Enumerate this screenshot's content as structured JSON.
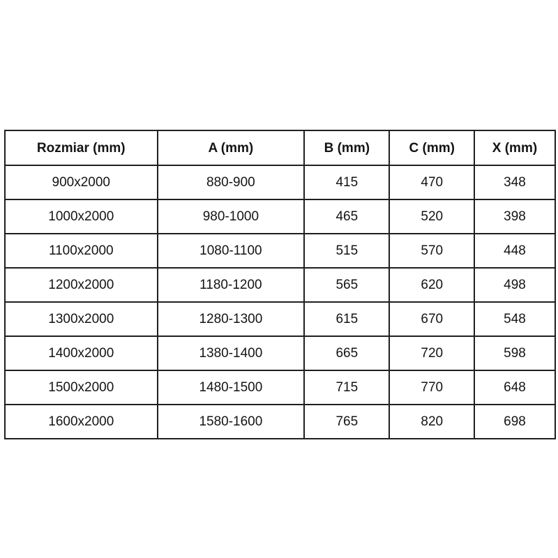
{
  "chart_data": {
    "type": "table",
    "title": "",
    "columns": [
      "Rozmiar (mm)",
      "A (mm)",
      "B (mm)",
      "C (mm)",
      "X (mm)"
    ],
    "rows": [
      [
        "900x2000",
        "880-900",
        "415",
        "470",
        "348"
      ],
      [
        "1000x2000",
        "980-1000",
        "465",
        "520",
        "398"
      ],
      [
        "1100x2000",
        "1080-1100",
        "515",
        "570",
        "448"
      ],
      [
        "1200x2000",
        "1180-1200",
        "565",
        "620",
        "498"
      ],
      [
        "1300x2000",
        "1280-1300",
        "615",
        "670",
        "548"
      ],
      [
        "1400x2000",
        "1380-1400",
        "665",
        "720",
        "598"
      ],
      [
        "1500x2000",
        "1480-1500",
        "715",
        "770",
        "648"
      ],
      [
        "1600x2000",
        "1580-1600",
        "765",
        "820",
        "698"
      ]
    ],
    "layout": {
      "grid": true,
      "border_color": "#1f1f1f",
      "background_color": "#ffffff",
      "text_color": "#141414",
      "header_bold": true
    }
  }
}
